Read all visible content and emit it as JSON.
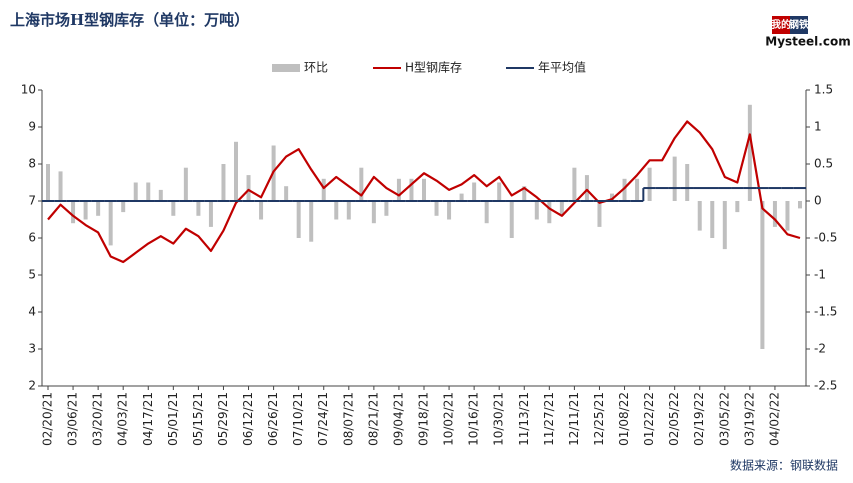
{
  "chart_data": {
    "type": "combo",
    "title": "上海市场H型钢库存（单位：万吨）",
    "source": "数据来源：钢联数据",
    "logo": [
      "我的",
      "钢铁",
      "Mysteel.com"
    ],
    "categories": [
      "02/20/21",
      null,
      "03/06/21",
      null,
      "03/20/21",
      null,
      "04/03/21",
      null,
      "04/17/21",
      null,
      "05/01/21",
      null,
      "05/15/21",
      null,
      "05/29/21",
      null,
      "06/12/21",
      null,
      "06/26/21",
      null,
      "07/10/21",
      null,
      "07/24/21",
      null,
      "08/07/21",
      null,
      "08/21/21",
      null,
      "09/04/21",
      null,
      "09/18/21",
      null,
      "10/02/21",
      null,
      "10/16/21",
      null,
      "10/30/21",
      null,
      "11/13/21",
      null,
      "11/27/21",
      null,
      "12/11/21",
      null,
      "12/25/21",
      null,
      "01/08/22",
      null,
      "01/22/22",
      null,
      "02/05/22",
      null,
      "02/19/22",
      null,
      "03/05/22",
      null,
      "03/19/22",
      null,
      "04/02/22",
      null,
      null
    ],
    "series": [
      {
        "name": "环比",
        "type": "bar",
        "axis": "y2",
        "color": "#bfbfbf",
        "values": [
          0.5,
          0.4,
          -0.3,
          -0.25,
          -0.2,
          -0.6,
          -0.15,
          0.25,
          0.25,
          0.15,
          -0.2,
          0.45,
          -0.2,
          -0.35,
          0.5,
          0.8,
          0.35,
          -0.25,
          0.75,
          0.2,
          -0.5,
          -0.55,
          0.3,
          -0.25,
          -0.25,
          0.45,
          -0.3,
          -0.2,
          0.3,
          0.3,
          0.3,
          -0.2,
          -0.25,
          0.1,
          0.25,
          -0.3,
          0.25,
          -0.5,
          0.2,
          -0.25,
          -0.3,
          -0.2,
          0.45,
          0.35,
          -0.35,
          0.1,
          0.3,
          0.3,
          0.45,
          0,
          0.6,
          0.5,
          -0.4,
          -0.5,
          -0.65,
          -0.15,
          1.3,
          -2.0,
          -0.35,
          -0.4,
          -0.1
        ]
      },
      {
        "name": "H型钢库存",
        "type": "line",
        "color": "#c00000",
        "values": [
          6.5,
          6.9,
          6.6,
          6.35,
          6.15,
          5.5,
          5.35,
          5.6,
          5.85,
          6.05,
          5.85,
          6.25,
          6.05,
          5.65,
          6.2,
          6.95,
          7.3,
          7.1,
          7.8,
          8.2,
          8.4,
          7.85,
          7.35,
          7.65,
          7.4,
          7.15,
          7.65,
          7.35,
          7.15,
          7.45,
          7.75,
          7.55,
          7.3,
          7.45,
          7.7,
          7.4,
          7.65,
          7.15,
          7.35,
          7.1,
          6.8,
          6.6,
          6.95,
          7.3,
          6.95,
          7.05,
          7.35,
          7.7,
          8.1,
          8.1,
          8.7,
          9.15,
          8.85,
          8.4,
          7.65,
          7.5,
          8.8,
          6.8,
          6.5,
          6.1,
          6.0
        ]
      },
      {
        "name": "年平均值",
        "type": "step",
        "color": "#1f3864",
        "values": [
          7,
          7,
          7,
          7,
          7,
          7,
          7,
          7,
          7,
          7,
          7,
          7,
          7,
          7,
          7,
          7,
          7,
          7,
          7,
          7,
          7,
          7,
          7,
          7,
          7,
          7,
          7,
          7,
          7,
          7,
          7,
          7,
          7,
          7,
          7,
          7,
          7,
          7,
          7,
          7,
          7,
          7,
          7,
          7,
          7,
          7,
          7,
          7,
          7.35,
          7.35,
          7.35,
          7.35,
          7.35,
          7.35,
          7.35,
          7.35,
          7.35,
          7.35,
          7.35,
          7.35,
          7.35
        ]
      }
    ],
    "ylim": [
      2,
      10
    ],
    "yticks": [
      2,
      3,
      4,
      5,
      6,
      7,
      8,
      9,
      10
    ],
    "y2lim": [
      -2.5,
      1.5
    ],
    "y2ticks": [
      1.5,
      1,
      0.5,
      0,
      -0.5,
      -1,
      -1.5,
      -2,
      -2.5
    ],
    "legend": "top"
  }
}
